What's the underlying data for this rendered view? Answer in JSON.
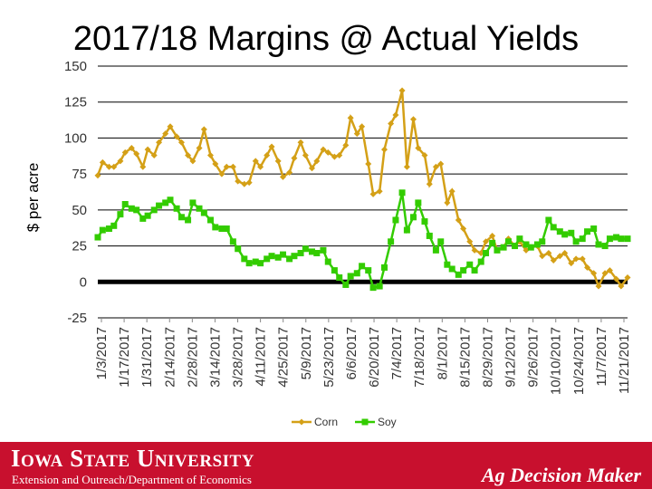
{
  "title": "2017/18 Margins @ Actual Yields",
  "footer": {
    "university": "Iowa State University",
    "department": "Extension and Outreach/Department of Economics",
    "brand": "Ag Decision Maker"
  },
  "colors": {
    "corn": "#d4a017",
    "soy": "#33cc00",
    "zero_line": "#000000",
    "grid": "#000000",
    "footer_bg": "#c8102e"
  },
  "chart_data": {
    "type": "line",
    "title": "2017/18 Margins @ Actual Yields",
    "ylabel": "$ per acre",
    "xlabel": "",
    "ylim": [
      -25,
      150
    ],
    "yticks": [
      -25,
      0,
      25,
      50,
      75,
      100,
      125,
      150
    ],
    "xlim": [
      "2017-01-03",
      "2017-11-28"
    ],
    "x_tick_labels": [
      "1/3/2017",
      "1/17/2017",
      "1/31/2017",
      "2/14/2017",
      "2/28/2017",
      "3/14/2017",
      "3/28/2017",
      "4/11/2017",
      "4/25/2017",
      "5/9/2017",
      "5/23/2017",
      "6/6/2017",
      "6/20/2017",
      "7/4/2017",
      "7/18/2017",
      "8/1/2017",
      "8/15/2017",
      "8/29/2017",
      "9/12/2017",
      "9/26/2017",
      "10/10/2017",
      "10/24/2017",
      "11/7/2017",
      "11/21/2017"
    ],
    "grid": true,
    "legend_position": "bottom",
    "series": [
      {
        "name": "Corn",
        "points": [
          [
            "2017-01-03",
            74
          ],
          [
            "2017-01-06",
            83
          ],
          [
            "2017-01-10",
            80
          ],
          [
            "2017-01-13",
            80
          ],
          [
            "2017-01-17",
            84
          ],
          [
            "2017-01-20",
            90
          ],
          [
            "2017-01-24",
            93
          ],
          [
            "2017-01-27",
            89
          ],
          [
            "2017-01-31",
            80
          ],
          [
            "2017-02-03",
            92
          ],
          [
            "2017-02-07",
            88
          ],
          [
            "2017-02-10",
            97
          ],
          [
            "2017-02-14",
            103
          ],
          [
            "2017-02-17",
            108
          ],
          [
            "2017-02-21",
            101
          ],
          [
            "2017-02-24",
            97
          ],
          [
            "2017-02-28",
            88
          ],
          [
            "2017-03-03",
            84
          ],
          [
            "2017-03-07",
            93
          ],
          [
            "2017-03-10",
            106
          ],
          [
            "2017-03-14",
            88
          ],
          [
            "2017-03-17",
            82
          ],
          [
            "2017-03-21",
            75
          ],
          [
            "2017-03-24",
            80
          ],
          [
            "2017-03-28",
            80
          ],
          [
            "2017-03-31",
            70
          ],
          [
            "2017-04-04",
            68
          ],
          [
            "2017-04-07",
            69
          ],
          [
            "2017-04-11",
            84
          ],
          [
            "2017-04-14",
            80
          ],
          [
            "2017-04-18",
            88
          ],
          [
            "2017-04-21",
            94
          ],
          [
            "2017-04-25",
            84
          ],
          [
            "2017-04-28",
            73
          ],
          [
            "2017-05-02",
            76
          ],
          [
            "2017-05-05",
            86
          ],
          [
            "2017-05-09",
            97
          ],
          [
            "2017-05-12",
            88
          ],
          [
            "2017-05-16",
            79
          ],
          [
            "2017-05-19",
            84
          ],
          [
            "2017-05-23",
            92
          ],
          [
            "2017-05-26",
            90
          ],
          [
            "2017-05-30",
            87
          ],
          [
            "2017-06-02",
            88
          ],
          [
            "2017-06-06",
            95
          ],
          [
            "2017-06-09",
            114
          ],
          [
            "2017-06-13",
            103
          ],
          [
            "2017-06-16",
            108
          ],
          [
            "2017-06-20",
            82
          ],
          [
            "2017-06-23",
            61
          ],
          [
            "2017-06-27",
            63
          ],
          [
            "2017-06-30",
            92
          ],
          [
            "2017-07-04",
            110
          ],
          [
            "2017-07-07",
            116
          ],
          [
            "2017-07-11",
            133
          ],
          [
            "2017-07-14",
            80
          ],
          [
            "2017-07-18",
            113
          ],
          [
            "2017-07-21",
            93
          ],
          [
            "2017-07-25",
            88
          ],
          [
            "2017-07-28",
            68
          ],
          [
            "2017-08-01",
            80
          ],
          [
            "2017-08-04",
            82
          ],
          [
            "2017-08-08",
            55
          ],
          [
            "2017-08-11",
            63
          ],
          [
            "2017-08-15",
            43
          ],
          [
            "2017-08-18",
            37
          ],
          [
            "2017-08-22",
            28
          ],
          [
            "2017-08-25",
            22
          ],
          [
            "2017-08-29",
            20
          ],
          [
            "2017-09-01",
            28
          ],
          [
            "2017-09-05",
            32
          ],
          [
            "2017-09-08",
            22
          ],
          [
            "2017-09-12",
            24
          ],
          [
            "2017-09-15",
            30
          ],
          [
            "2017-09-19",
            25
          ],
          [
            "2017-09-22",
            28
          ],
          [
            "2017-09-26",
            22
          ],
          [
            "2017-09-29",
            24
          ],
          [
            "2017-10-03",
            25
          ],
          [
            "2017-10-06",
            18
          ],
          [
            "2017-10-10",
            20
          ],
          [
            "2017-10-13",
            15
          ],
          [
            "2017-10-17",
            18
          ],
          [
            "2017-10-20",
            20
          ],
          [
            "2017-10-24",
            13
          ],
          [
            "2017-10-27",
            16
          ],
          [
            "2017-10-31",
            16
          ],
          [
            "2017-11-03",
            10
          ],
          [
            "2017-11-07",
            6
          ],
          [
            "2017-11-10",
            -3
          ],
          [
            "2017-11-14",
            6
          ],
          [
            "2017-11-17",
            8
          ],
          [
            "2017-11-21",
            2
          ],
          [
            "2017-11-24",
            -3
          ],
          [
            "2017-11-28",
            3
          ]
        ]
      },
      {
        "name": "Soy",
        "points": [
          [
            "2017-01-03",
            31
          ],
          [
            "2017-01-06",
            36
          ],
          [
            "2017-01-10",
            37
          ],
          [
            "2017-01-13",
            39
          ],
          [
            "2017-01-17",
            47
          ],
          [
            "2017-01-20",
            54
          ],
          [
            "2017-01-24",
            51
          ],
          [
            "2017-01-27",
            50
          ],
          [
            "2017-01-31",
            44
          ],
          [
            "2017-02-03",
            46
          ],
          [
            "2017-02-07",
            50
          ],
          [
            "2017-02-10",
            53
          ],
          [
            "2017-02-14",
            55
          ],
          [
            "2017-02-17",
            57
          ],
          [
            "2017-02-21",
            51
          ],
          [
            "2017-02-24",
            45
          ],
          [
            "2017-02-28",
            43
          ],
          [
            "2017-03-03",
            55
          ],
          [
            "2017-03-07",
            51
          ],
          [
            "2017-03-10",
            48
          ],
          [
            "2017-03-14",
            43
          ],
          [
            "2017-03-17",
            38
          ],
          [
            "2017-03-21",
            37
          ],
          [
            "2017-03-24",
            37
          ],
          [
            "2017-03-28",
            28
          ],
          [
            "2017-03-31",
            23
          ],
          [
            "2017-04-04",
            16
          ],
          [
            "2017-04-07",
            13
          ],
          [
            "2017-04-11",
            14
          ],
          [
            "2017-04-14",
            13
          ],
          [
            "2017-04-18",
            16
          ],
          [
            "2017-04-21",
            18
          ],
          [
            "2017-04-25",
            17
          ],
          [
            "2017-04-28",
            19
          ],
          [
            "2017-05-02",
            16
          ],
          [
            "2017-05-05",
            18
          ],
          [
            "2017-05-09",
            20
          ],
          [
            "2017-05-12",
            23
          ],
          [
            "2017-05-16",
            21
          ],
          [
            "2017-05-19",
            20
          ],
          [
            "2017-05-23",
            22
          ],
          [
            "2017-05-26",
            14
          ],
          [
            "2017-05-30",
            8
          ],
          [
            "2017-06-02",
            3
          ],
          [
            "2017-06-06",
            -2
          ],
          [
            "2017-06-09",
            4
          ],
          [
            "2017-06-13",
            6
          ],
          [
            "2017-06-16",
            11
          ],
          [
            "2017-06-20",
            8
          ],
          [
            "2017-06-23",
            -4
          ],
          [
            "2017-06-27",
            -3
          ],
          [
            "2017-06-30",
            10
          ],
          [
            "2017-07-04",
            28
          ],
          [
            "2017-07-07",
            43
          ],
          [
            "2017-07-11",
            62
          ],
          [
            "2017-07-14",
            36
          ],
          [
            "2017-07-18",
            45
          ],
          [
            "2017-07-21",
            55
          ],
          [
            "2017-07-25",
            42
          ],
          [
            "2017-07-28",
            32
          ],
          [
            "2017-08-01",
            22
          ],
          [
            "2017-08-04",
            28
          ],
          [
            "2017-08-08",
            12
          ],
          [
            "2017-08-11",
            9
          ],
          [
            "2017-08-15",
            5
          ],
          [
            "2017-08-18",
            8
          ],
          [
            "2017-08-22",
            12
          ],
          [
            "2017-08-25",
            8
          ],
          [
            "2017-08-29",
            14
          ],
          [
            "2017-09-01",
            20
          ],
          [
            "2017-09-05",
            27
          ],
          [
            "2017-09-08",
            22
          ],
          [
            "2017-09-12",
            24
          ],
          [
            "2017-09-15",
            28
          ],
          [
            "2017-09-19",
            25
          ],
          [
            "2017-09-22",
            30
          ],
          [
            "2017-09-26",
            26
          ],
          [
            "2017-09-29",
            24
          ],
          [
            "2017-10-03",
            26
          ],
          [
            "2017-10-06",
            28
          ],
          [
            "2017-10-10",
            43
          ],
          [
            "2017-10-13",
            38
          ],
          [
            "2017-10-17",
            35
          ],
          [
            "2017-10-20",
            33
          ],
          [
            "2017-10-24",
            34
          ],
          [
            "2017-10-27",
            28
          ],
          [
            "2017-10-31",
            30
          ],
          [
            "2017-11-03",
            35
          ],
          [
            "2017-11-07",
            37
          ],
          [
            "2017-11-10",
            26
          ],
          [
            "2017-11-14",
            25
          ],
          [
            "2017-11-17",
            30
          ],
          [
            "2017-11-21",
            31
          ],
          [
            "2017-11-24",
            30
          ],
          [
            "2017-11-28",
            30
          ]
        ]
      }
    ]
  }
}
